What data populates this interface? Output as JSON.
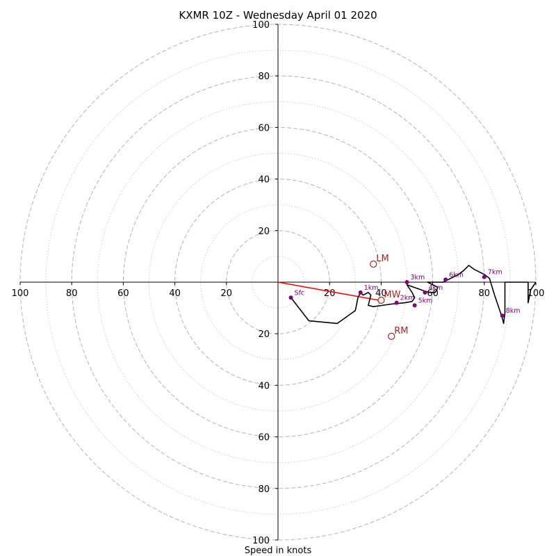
{
  "chart_data": {
    "type": "line",
    "title": "KXMR 10Z - Wednesday April 01 2020",
    "xlabel": "Speed in knots",
    "ylabel": "",
    "xlim": [
      -100,
      100
    ],
    "ylim": [
      -100,
      100
    ],
    "ticks": [
      100,
      80,
      60,
      40,
      20
    ],
    "major_rings": [
      20,
      40,
      60,
      80,
      100
    ],
    "minor_rings": [
      10,
      30,
      50,
      70,
      90
    ],
    "grid": true,
    "hodograph": {
      "color": "#000000",
      "points": [
        [
          5,
          -6
        ],
        [
          12,
          -15
        ],
        [
          23,
          -16
        ],
        [
          30,
          -11
        ],
        [
          31,
          -6
        ],
        [
          32,
          -4
        ],
        [
          33,
          -5
        ],
        [
          35,
          -4
        ],
        [
          36,
          -5
        ],
        [
          35,
          -9
        ],
        [
          37,
          -9.5
        ],
        [
          44,
          -8.5
        ],
        [
          49,
          -8
        ],
        [
          52,
          -7.5
        ],
        [
          53,
          -6
        ],
        [
          52,
          -4
        ],
        [
          50,
          -1
        ],
        [
          57,
          -3.5
        ],
        [
          59,
          -4
        ],
        [
          61,
          -4
        ],
        [
          62,
          -2
        ],
        [
          58,
          0
        ],
        [
          62,
          0
        ],
        [
          64,
          0
        ],
        [
          66,
          1
        ],
        [
          68,
          2
        ],
        [
          70,
          3
        ],
        [
          72,
          4.5
        ],
        [
          74,
          6.5
        ],
        [
          76,
          5
        ],
        [
          78,
          4
        ],
        [
          80,
          3
        ],
        [
          82,
          1.5
        ],
        [
          84,
          -5
        ],
        [
          86,
          -11
        ],
        [
          87,
          -14
        ],
        [
          87.5,
          -16
        ],
        [
          88,
          -12
        ],
        [
          88,
          -6
        ],
        [
          88,
          0
        ],
        [
          92,
          0
        ],
        [
          96,
          0
        ],
        [
          97,
          0
        ],
        [
          97,
          -8
        ],
        [
          98,
          -3
        ],
        [
          100,
          0
        ]
      ]
    },
    "height_markers": {
      "color": "#800080",
      "points": [
        {
          "label": "Sfc",
          "x": 5,
          "y": -6
        },
        {
          "label": "1km",
          "x": 32,
          "y": -4
        },
        {
          "label": "2km",
          "x": 46,
          "y": -8
        },
        {
          "label": "3km",
          "x": 50,
          "y": 0
        },
        {
          "label": "4km",
          "x": 57,
          "y": -4
        },
        {
          "label": "5km",
          "x": 53,
          "y": -9
        },
        {
          "label": "6km",
          "x": 65,
          "y": 1
        },
        {
          "label": "7km",
          "x": 80,
          "y": 2
        },
        {
          "label": "8km",
          "x": 87,
          "y": -13
        }
      ]
    },
    "storm_motion": {
      "color": "#b22222",
      "points": [
        {
          "label": "LM",
          "x": 37,
          "y": 7
        },
        {
          "label": "MW",
          "x": 40,
          "y": -7
        },
        {
          "label": "RM",
          "x": 44,
          "y": -21
        }
      ]
    },
    "mean_wind_vector": {
      "color": "#ff0000",
      "x": 39,
      "y": -7
    }
  }
}
